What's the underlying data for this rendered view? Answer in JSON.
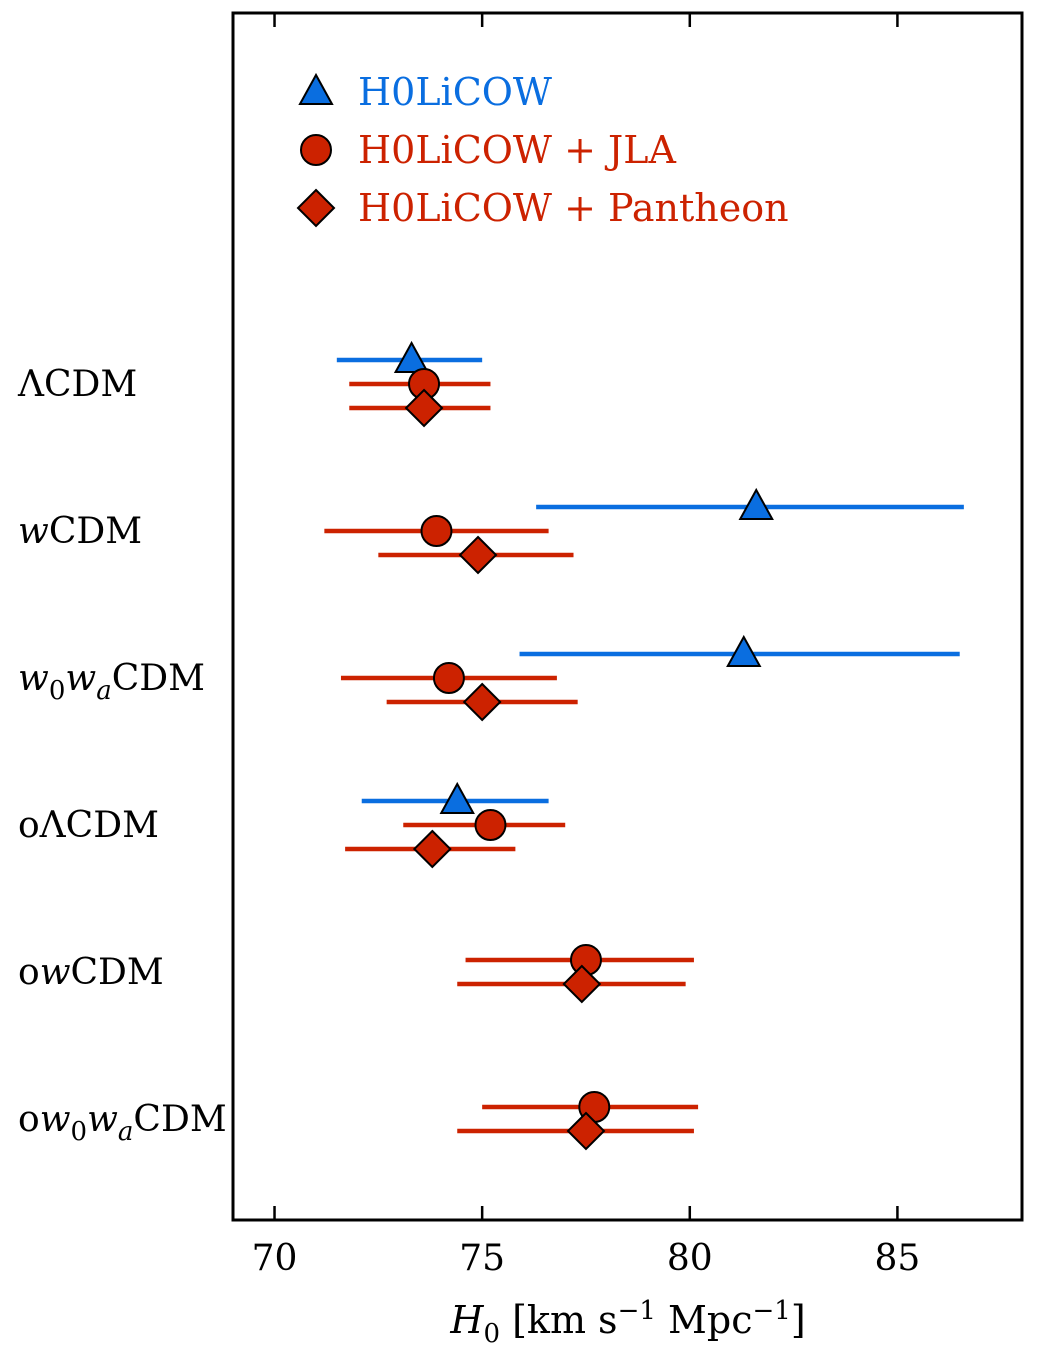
{
  "chart_data": {
    "type": "forest-plot",
    "xlabel_parts": {
      "var": "H",
      "sub": "0",
      "text1": " [km s",
      "sup1": "−1",
      "text2": " Mpc",
      "sup2": "−1",
      "text3": "]"
    },
    "xlim": [
      69,
      88
    ],
    "xticks": [
      70,
      75,
      80,
      85
    ],
    "legend_location": "top-left",
    "series": [
      {
        "name": "H0LiCOW",
        "color": "#0a6ee0",
        "marker": "triangle"
      },
      {
        "name": "H0LiCOW + JLA",
        "color": "#cc2200",
        "marker": "circle"
      },
      {
        "name": "H0LiCOW + Pantheon",
        "color": "#cc2200",
        "marker": "diamond"
      }
    ],
    "models": [
      {
        "label_parts": [
          {
            "t": "ΛCDM",
            "s": "n"
          }
        ],
        "points": [
          {
            "series": 0,
            "value": 73.3,
            "low": 71.5,
            "high": 75.0
          },
          {
            "series": 1,
            "value": 73.6,
            "low": 71.8,
            "high": 75.2
          },
          {
            "series": 2,
            "value": 73.6,
            "low": 71.8,
            "high": 75.2
          }
        ]
      },
      {
        "label_parts": [
          {
            "t": "w",
            "s": "i"
          },
          {
            "t": "CDM",
            "s": "n"
          }
        ],
        "points": [
          {
            "series": 0,
            "value": 81.6,
            "low": 76.3,
            "high": 86.6
          },
          {
            "series": 1,
            "value": 73.9,
            "low": 71.2,
            "high": 76.6
          },
          {
            "series": 2,
            "value": 74.9,
            "low": 72.5,
            "high": 77.2
          }
        ]
      },
      {
        "label_parts": [
          {
            "t": "w",
            "s": "i"
          },
          {
            "t": "0",
            "s": "sub"
          },
          {
            "t": "w",
            "s": "i"
          },
          {
            "t": "a",
            "s": "isub"
          },
          {
            "t": "CDM",
            "s": "n"
          }
        ],
        "points": [
          {
            "series": 0,
            "value": 81.3,
            "low": 75.9,
            "high": 86.5
          },
          {
            "series": 1,
            "value": 74.2,
            "low": 71.6,
            "high": 76.8
          },
          {
            "series": 2,
            "value": 75.0,
            "low": 72.7,
            "high": 77.3
          }
        ]
      },
      {
        "label_parts": [
          {
            "t": "oΛCDM",
            "s": "n"
          }
        ],
        "points": [
          {
            "series": 0,
            "value": 74.4,
            "low": 72.1,
            "high": 76.6
          },
          {
            "series": 1,
            "value": 75.2,
            "low": 73.1,
            "high": 77.0
          },
          {
            "series": 2,
            "value": 73.8,
            "low": 71.7,
            "high": 75.8
          }
        ]
      },
      {
        "label_parts": [
          {
            "t": "o",
            "s": "n"
          },
          {
            "t": "w",
            "s": "i"
          },
          {
            "t": "CDM",
            "s": "n"
          }
        ],
        "points": [
          {
            "series": 1,
            "value": 77.5,
            "low": 74.6,
            "high": 80.1
          },
          {
            "series": 2,
            "value": 77.4,
            "low": 74.4,
            "high": 79.9
          }
        ]
      },
      {
        "label_parts": [
          {
            "t": "o",
            "s": "n"
          },
          {
            "t": "w",
            "s": "i"
          },
          {
            "t": "0",
            "s": "sub"
          },
          {
            "t": "w",
            "s": "i"
          },
          {
            "t": "a",
            "s": "isub"
          },
          {
            "t": "CDM",
            "s": "n"
          }
        ],
        "points": [
          {
            "series": 1,
            "value": 77.7,
            "low": 75.0,
            "high": 80.2
          },
          {
            "series": 2,
            "value": 77.5,
            "low": 74.4,
            "high": 80.1
          }
        ]
      }
    ]
  }
}
